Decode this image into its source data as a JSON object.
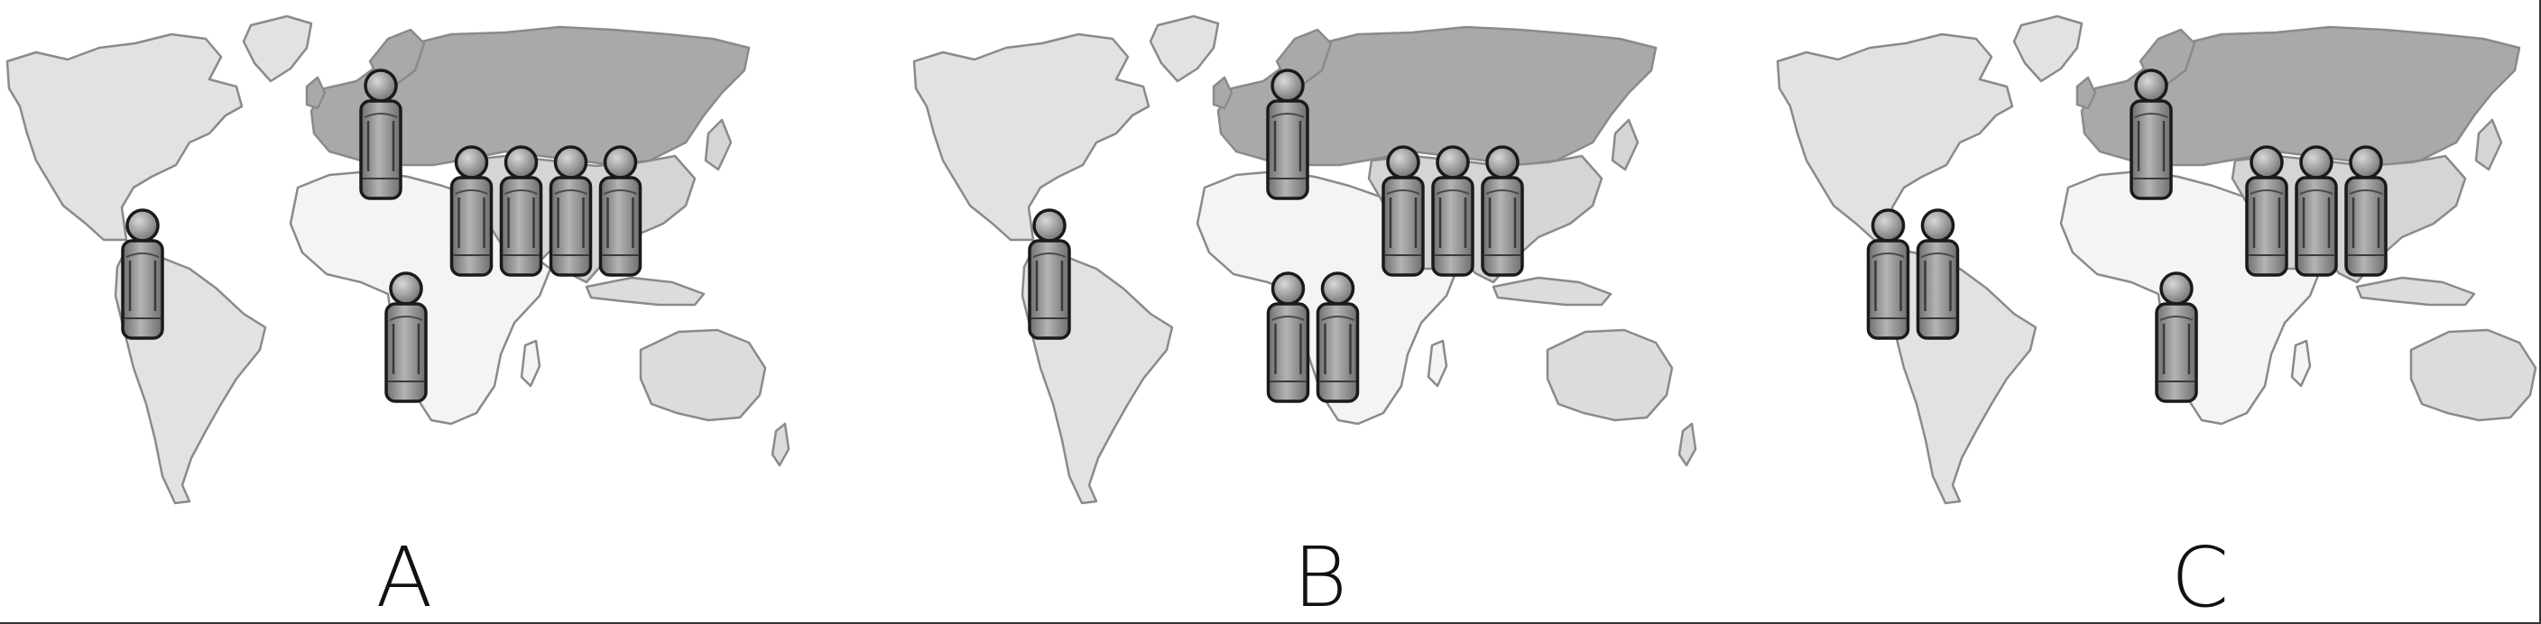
{
  "panels": [
    {
      "label": "A",
      "figures": {
        "americas": 1,
        "europe": 1,
        "africa": 1,
        "asia": 4
      }
    },
    {
      "label": "B",
      "figures": {
        "americas": 1,
        "europe": 1,
        "africa": 2,
        "asia": 3
      }
    },
    {
      "label": "C",
      "figures": {
        "americas": 2,
        "europe": 1,
        "africa": 1,
        "asia": 3
      }
    }
  ],
  "colors": {
    "americas": "#e2e2e2",
    "africa": "#f4f4f4",
    "eurasia_north": "#a9a9a9",
    "asia_south": "#d5d5d5",
    "oceania": "#dcdcdc",
    "coastline": "#8a8a8a",
    "figure_fill": "#8c8c8c",
    "figure_stroke": "#1a1a1a",
    "label": "#111111"
  }
}
